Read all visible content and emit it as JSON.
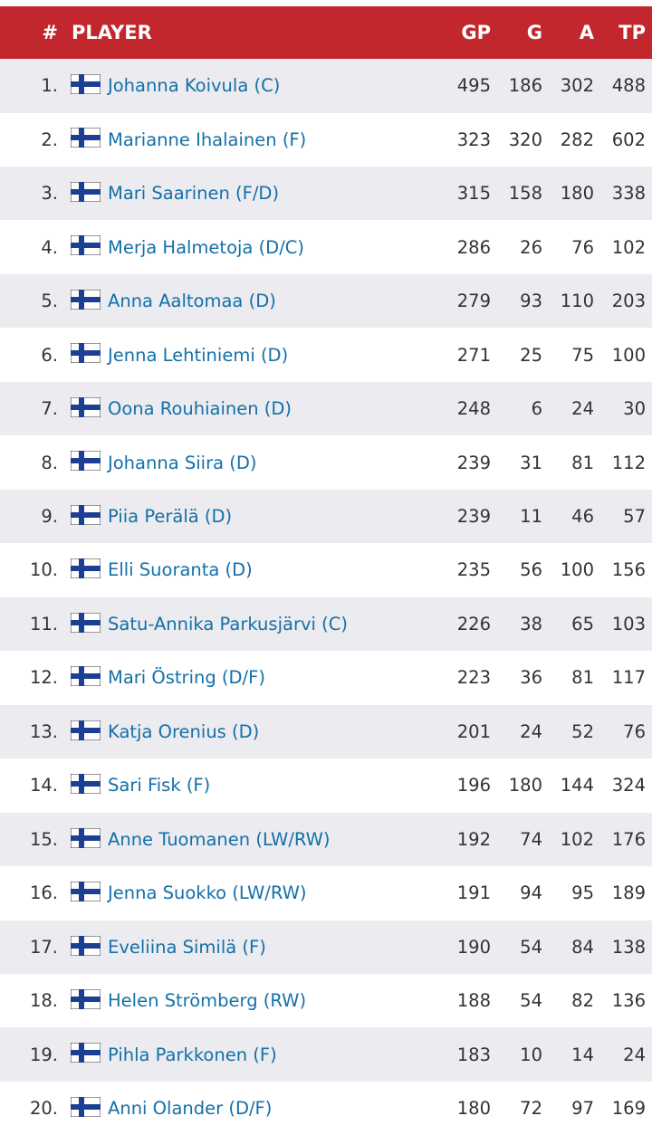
{
  "table": {
    "columns": [
      "#",
      "PLAYER",
      "GP",
      "G",
      "A",
      "TP"
    ],
    "rows": [
      [
        "1.",
        "Johanna Koivula (C)",
        495,
        186,
        302,
        488
      ],
      [
        "2.",
        "Marianne Ihalainen (F)",
        323,
        320,
        282,
        602
      ],
      [
        "3.",
        "Mari Saarinen (F/D)",
        315,
        158,
        180,
        338
      ],
      [
        "4.",
        "Merja Halmetoja (D/C)",
        286,
        26,
        76,
        102
      ],
      [
        "5.",
        "Anna Aaltomaa (D)",
        279,
        93,
        110,
        203
      ],
      [
        "6.",
        "Jenna Lehtiniemi (D)",
        271,
        25,
        75,
        100
      ],
      [
        "7.",
        "Oona Rouhiainen (D)",
        248,
        6,
        24,
        30
      ],
      [
        "8.",
        "Johanna Siira (D)",
        239,
        31,
        81,
        112
      ],
      [
        "9.",
        "Piia Perälä (D)",
        239,
        11,
        46,
        57
      ],
      [
        "10.",
        "Elli Suoranta (D)",
        235,
        56,
        100,
        156
      ],
      [
        "11.",
        "Satu-Annika Parkusjärvi (C)",
        226,
        38,
        65,
        103
      ],
      [
        "12.",
        "Mari Östring (D/F)",
        223,
        36,
        81,
        117
      ],
      [
        "13.",
        "Katja Orenius (D)",
        201,
        24,
        52,
        76
      ],
      [
        "14.",
        "Sari Fisk (F)",
        196,
        180,
        144,
        324
      ],
      [
        "15.",
        "Anne Tuomanen (LW/RW)",
        192,
        74,
        102,
        176
      ],
      [
        "16.",
        "Jenna Suokko (LW/RW)",
        191,
        94,
        95,
        189
      ],
      [
        "17.",
        "Eveliina Similä (F)",
        190,
        54,
        84,
        138
      ],
      [
        "18.",
        "Helen Strömberg (RW)",
        188,
        54,
        82,
        136
      ],
      [
        "19.",
        "Pihla Parkkonen (F)",
        183,
        10,
        14,
        24
      ],
      [
        "20.",
        "Anni Olander (D/F)",
        180,
        72,
        97,
        169
      ]
    ]
  }
}
